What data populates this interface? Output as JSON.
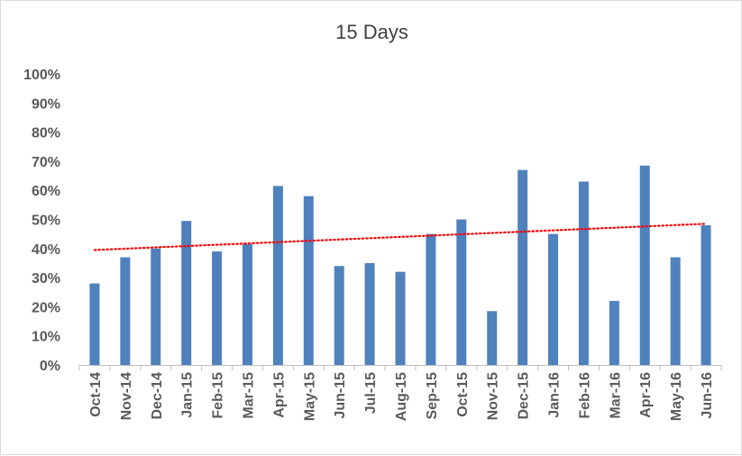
{
  "chart_data": {
    "type": "bar",
    "title": "15 Days",
    "xlabel": "",
    "ylabel": "",
    "categories": [
      "Oct-14",
      "Nov-14",
      "Dec-14",
      "Jan-15",
      "Feb-15",
      "Mar-15",
      "Apr-15",
      "May-15",
      "Jun-15",
      "Jul-15",
      "Aug-15",
      "Sep-15",
      "Oct-15",
      "Nov-15",
      "Dec-15",
      "Jan-16",
      "Feb-16",
      "Mar-16",
      "Apr-16",
      "May-16",
      "Jun-16"
    ],
    "series": [
      {
        "values": [
          28,
          37,
          40,
          49.5,
          39,
          41.5,
          61.5,
          58,
          34,
          35,
          32,
          45,
          50,
          18.5,
          67,
          45,
          63,
          22,
          68.5,
          37,
          48
        ]
      }
    ],
    "trendline": {
      "type": "linear",
      "start": 39.5,
      "end": 48.5,
      "color": "#ff0000",
      "style": "dotted"
    },
    "ylim": [
      0,
      100
    ],
    "y_ticks": [
      "0%",
      "10%",
      "20%",
      "30%",
      "40%",
      "50%",
      "60%",
      "70%",
      "80%",
      "90%",
      "100%"
    ],
    "bar_color": "#4f81bd",
    "grid": false,
    "legend": "none"
  }
}
